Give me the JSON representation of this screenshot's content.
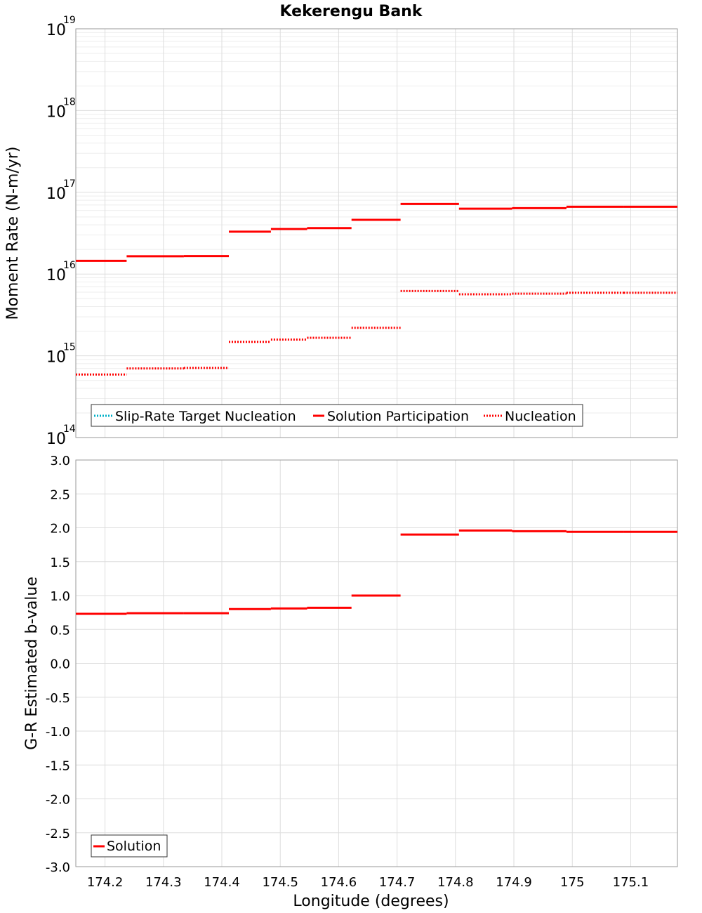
{
  "title": "Kekerengu Bank",
  "colors": {
    "red": "#ff0000",
    "cyan": "#00b0c8"
  },
  "chart_data": [
    {
      "type": "line",
      "step": true,
      "ylabel": "Moment Rate (N-m/yr)",
      "yscale": "log",
      "ylim": [
        100000000000000.0,
        1e+19
      ],
      "xlim": [
        174.15,
        175.18
      ],
      "yticks": [
        {
          "base": "10",
          "exp": "14"
        },
        {
          "base": "10",
          "exp": "15"
        },
        {
          "base": "10",
          "exp": "16"
        },
        {
          "base": "10",
          "exp": "17"
        },
        {
          "base": "10",
          "exp": "18"
        },
        {
          "base": "10",
          "exp": "19"
        }
      ],
      "legend_position": "bottom-left",
      "series": [
        {
          "name": "Slip-Rate Target Nucleation",
          "style": "dotted",
          "color": "#00b0c8",
          "segments": []
        },
        {
          "name": "Solution Participation",
          "style": "solid",
          "color": "#ff0000",
          "segments": [
            {
              "x0": 174.15,
              "x1": 174.237,
              "y": 1.45e+16
            },
            {
              "x0": 174.237,
              "x1": 174.335,
              "y": 1.65e+16
            },
            {
              "x0": 174.335,
              "x1": 174.412,
              "y": 1.66e+16
            },
            {
              "x0": 174.412,
              "x1": 174.484,
              "y": 3.3e+16
            },
            {
              "x0": 174.484,
              "x1": 174.546,
              "y": 3.55e+16
            },
            {
              "x0": 174.546,
              "x1": 174.622,
              "y": 3.65e+16
            },
            {
              "x0": 174.622,
              "x1": 174.706,
              "y": 4.6e+16
            },
            {
              "x0": 174.706,
              "x1": 174.806,
              "y": 7.2e+16
            },
            {
              "x0": 174.806,
              "x1": 174.897,
              "y": 6.3e+16
            },
            {
              "x0": 174.897,
              "x1": 174.99,
              "y": 6.4e+16
            },
            {
              "x0": 174.99,
              "x1": 175.088,
              "y": 6.65e+16
            },
            {
              "x0": 175.088,
              "x1": 175.18,
              "y": 6.65e+16
            }
          ]
        },
        {
          "name": "Nucleation",
          "style": "dotted",
          "color": "#ff0000",
          "segments": [
            {
              "x0": 174.15,
              "x1": 174.237,
              "y": 590000000000000.0
            },
            {
              "x0": 174.237,
              "x1": 174.335,
              "y": 700000000000000.0
            },
            {
              "x0": 174.335,
              "x1": 174.412,
              "y": 710000000000000.0
            },
            {
              "x0": 174.412,
              "x1": 174.484,
              "y": 1480000000000000.0
            },
            {
              "x0": 174.484,
              "x1": 174.546,
              "y": 1580000000000000.0
            },
            {
              "x0": 174.546,
              "x1": 174.622,
              "y": 1660000000000000.0
            },
            {
              "x0": 174.622,
              "x1": 174.706,
              "y": 2200000000000000.0
            },
            {
              "x0": 174.706,
              "x1": 174.806,
              "y": 6200000000000000.0
            },
            {
              "x0": 174.806,
              "x1": 174.897,
              "y": 5650000000000000.0
            },
            {
              "x0": 174.897,
              "x1": 174.99,
              "y": 5750000000000000.0
            },
            {
              "x0": 174.99,
              "x1": 175.088,
              "y": 5900000000000000.0
            },
            {
              "x0": 175.088,
              "x1": 175.18,
              "y": 5900000000000000.0
            }
          ]
        }
      ]
    },
    {
      "type": "line",
      "step": true,
      "xlabel": "Longitude (degrees)",
      "ylabel": "G-R Estimated b-value",
      "ylim": [
        -3.0,
        3.0
      ],
      "xlim": [
        174.15,
        175.18
      ],
      "yticks": [
        "3.0",
        "2.5",
        "2.0",
        "1.5",
        "1.0",
        "0.5",
        "0.0",
        "-0.5",
        "-1.0",
        "-1.5",
        "-2.0",
        "-2.5",
        "-3.0"
      ],
      "xticks": [
        "174.2",
        "174.3",
        "174.4",
        "174.5",
        "174.6",
        "174.7",
        "174.8",
        "174.9",
        "175",
        "175.1"
      ],
      "legend_position": "bottom-left",
      "series": [
        {
          "name": "Solution",
          "style": "solid",
          "color": "#ff0000",
          "segments": [
            {
              "x0": 174.15,
              "x1": 174.237,
              "y": 0.73
            },
            {
              "x0": 174.237,
              "x1": 174.335,
              "y": 0.74
            },
            {
              "x0": 174.335,
              "x1": 174.412,
              "y": 0.74
            },
            {
              "x0": 174.412,
              "x1": 174.484,
              "y": 0.8
            },
            {
              "x0": 174.484,
              "x1": 174.546,
              "y": 0.81
            },
            {
              "x0": 174.546,
              "x1": 174.622,
              "y": 0.82
            },
            {
              "x0": 174.622,
              "x1": 174.706,
              "y": 1.0
            },
            {
              "x0": 174.706,
              "x1": 174.806,
              "y": 1.9
            },
            {
              "x0": 174.806,
              "x1": 174.897,
              "y": 1.96
            },
            {
              "x0": 174.897,
              "x1": 174.99,
              "y": 1.95
            },
            {
              "x0": 174.99,
              "x1": 175.088,
              "y": 1.94
            },
            {
              "x0": 175.088,
              "x1": 175.18,
              "y": 1.94
            }
          ]
        }
      ]
    }
  ]
}
